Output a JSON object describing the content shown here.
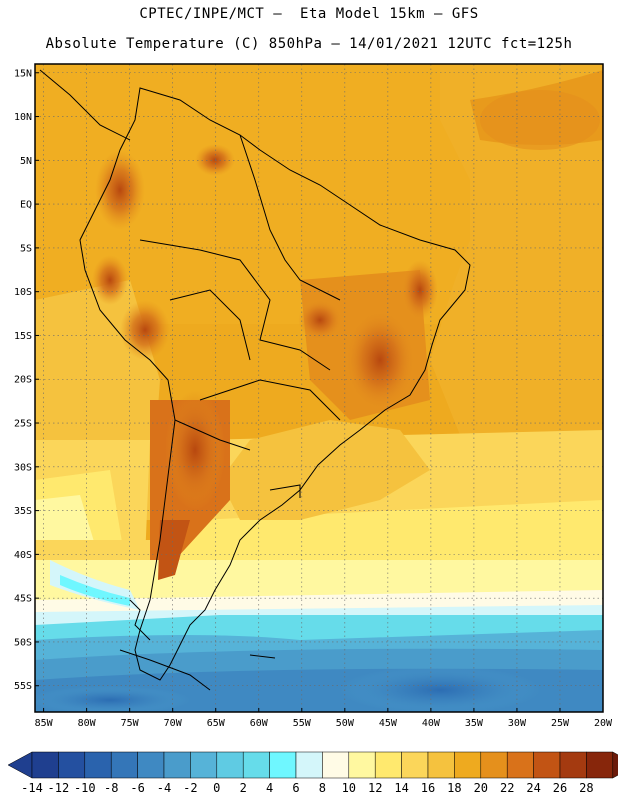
{
  "header": {
    "line1": "CPTEC/INPE/MCT –  Eta Model 15km – GFS",
    "line2": "Absolute Temperature (C) 850hPa – 14/01/2021 12UTC fct=125h"
  },
  "map": {
    "lat_labels": [
      "15N",
      "10N",
      "5N",
      "EQ",
      "5S",
      "10S",
      "15S",
      "20S",
      "25S",
      "30S",
      "35S",
      "40S",
      "45S",
      "50S",
      "55S"
    ],
    "lon_labels": [
      "85W",
      "80W",
      "75W",
      "70W",
      "65W",
      "60W",
      "55W",
      "50W",
      "45W",
      "40W",
      "35W",
      "30W",
      "25W",
      "20W"
    ],
    "lat_range": [
      -58,
      16
    ],
    "lon_range": [
      -86,
      -20
    ]
  },
  "colorbar": {
    "labels": [
      "-14",
      "-12",
      "-10",
      "-8",
      "-6",
      "-4",
      "-2",
      "0",
      "2",
      "4",
      "6",
      "8",
      "10",
      "12",
      "14",
      "16",
      "18",
      "20",
      "22",
      "24",
      "26",
      "28"
    ],
    "colors": [
      "#1f3f8f",
      "#2450a0",
      "#2a63ad",
      "#3476b8",
      "#3f89c2",
      "#4a9ccb",
      "#56b3d8",
      "#5fcbe3",
      "#66dcea",
      "#6ff7ff",
      "#d4f6fa",
      "#fffbe6",
      "#fff8a0",
      "#ffe96e",
      "#fbd65a",
      "#f5c23e",
      "#eeaa1f",
      "#e5901c",
      "#d9721a",
      "#c25414",
      "#a43a10",
      "#87260b",
      "#6b1a0a"
    ]
  }
}
